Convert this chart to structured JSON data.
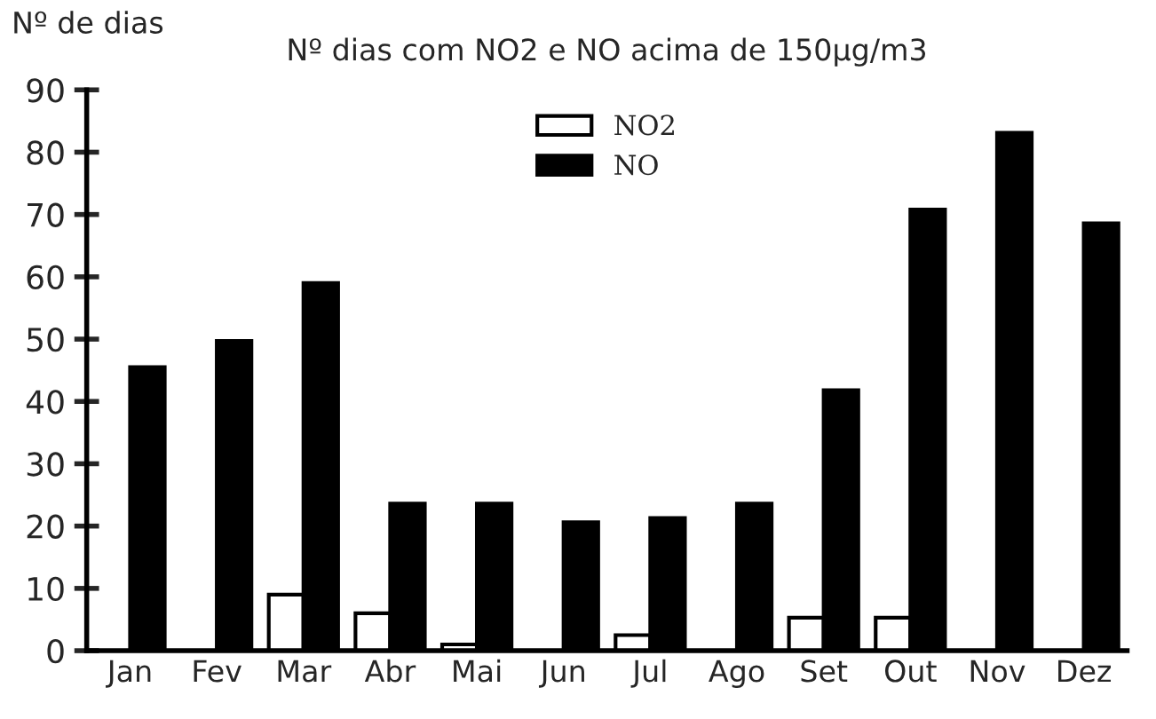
{
  "chart_data": {
    "type": "bar",
    "title": "Nº dias com NO2 e NO acima de 150µg/m3",
    "ylabel": "Nº de dias",
    "categories": [
      "Jan",
      "Fev",
      "Mar",
      "Abr",
      "Mai",
      "Jun",
      "Jul",
      "Ago",
      "Set",
      "Out",
      "Nov",
      "Dez"
    ],
    "series": [
      {
        "name": "NO2",
        "color": "#ffffff",
        "values": [
          0,
          0,
          9,
          6,
          1,
          0,
          2.5,
          0,
          5.3,
          5.3,
          0,
          0
        ]
      },
      {
        "name": "NO",
        "color": "#000000",
        "values": [
          45.5,
          49.7,
          59,
          23.6,
          23.6,
          20.6,
          21.3,
          23.6,
          41.8,
          70.8,
          83.1,
          68.6
        ]
      }
    ],
    "ylim": [
      0,
      90
    ],
    "yticks": [
      0,
      10,
      20,
      30,
      40,
      50,
      60,
      70,
      80,
      90
    ],
    "grid": false,
    "legend": "top"
  }
}
